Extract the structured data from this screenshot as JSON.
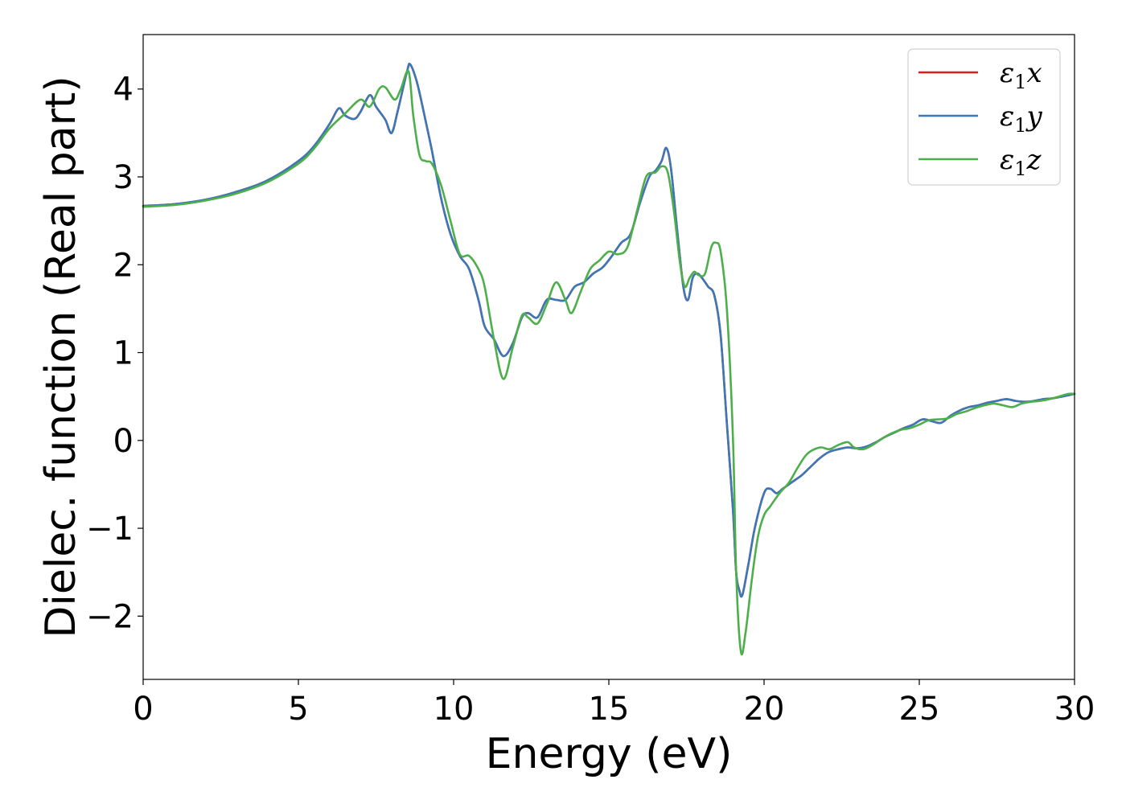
{
  "chart_data": {
    "type": "line",
    "title": "",
    "xlabel": "Energy (eV)",
    "ylabel": "Dielec. function (Real part)",
    "xlim": [
      0,
      30
    ],
    "ylim": [
      -2.72,
      4.62
    ],
    "xticks": [
      0,
      5,
      10,
      15,
      20,
      25,
      30
    ],
    "xtick_labels": [
      "0",
      "5",
      "10",
      "15",
      "20",
      "25",
      "30"
    ],
    "yticks": [
      -2,
      -1,
      0,
      1,
      2,
      3,
      4
    ],
    "ytick_labels": [
      "−2",
      "−1",
      "0",
      "1",
      "2",
      "3",
      "4"
    ],
    "grid": false,
    "legend_position": "top-right",
    "series": [
      {
        "name": "ε₁x",
        "legend": {
          "symbol": "ε",
          "sub": "1",
          "var": "x"
        },
        "color": "#e41a1c",
        "x": [
          0,
          1,
          2,
          3,
          4,
          5,
          5.5,
          6,
          6.3,
          6.5,
          6.8,
          7.0,
          7.3,
          7.5,
          7.8,
          8.0,
          8.2,
          8.5,
          8.6,
          8.8,
          9.0,
          9.3,
          9.6,
          9.9,
          10.2,
          10.5,
          10.8,
          11.0,
          11.3,
          11.6,
          11.9,
          12.2,
          12.4,
          12.7,
          13.0,
          13.3,
          13.6,
          13.9,
          14.2,
          14.5,
          14.8,
          15.1,
          15.4,
          15.7,
          16.0,
          16.3,
          16.5,
          16.7,
          16.85,
          17.0,
          17.2,
          17.4,
          17.55,
          17.7,
          17.85,
          18.0,
          18.2,
          18.4,
          18.6,
          18.8,
          19.0,
          19.1,
          19.2,
          19.3,
          19.5,
          19.7,
          20.0,
          20.2,
          20.4,
          20.6,
          20.8,
          21.0,
          21.2,
          21.5,
          21.8,
          22.1,
          22.4,
          22.7,
          23.0,
          23.3,
          23.6,
          23.9,
          24.2,
          24.5,
          24.8,
          25.1,
          25.4,
          25.7,
          26.0,
          26.3,
          26.6,
          26.9,
          27.2,
          27.5,
          27.8,
          28.1,
          28.4,
          28.7,
          29.0,
          29.3,
          29.6,
          30.0
        ],
        "y": [
          2.67,
          2.69,
          2.74,
          2.83,
          2.96,
          3.18,
          3.35,
          3.6,
          3.78,
          3.7,
          3.66,
          3.74,
          3.93,
          3.8,
          3.65,
          3.5,
          3.75,
          4.2,
          4.28,
          4.1,
          3.8,
          3.3,
          2.75,
          2.35,
          2.1,
          1.95,
          1.6,
          1.3,
          1.15,
          0.96,
          1.1,
          1.4,
          1.45,
          1.4,
          1.6,
          1.6,
          1.6,
          1.75,
          1.8,
          1.9,
          1.97,
          2.1,
          2.25,
          2.35,
          2.7,
          3.0,
          3.07,
          3.18,
          3.33,
          3.1,
          2.4,
          1.75,
          1.6,
          1.85,
          1.9,
          1.85,
          1.75,
          1.65,
          1.2,
          0.2,
          -0.8,
          -1.5,
          -1.7,
          -1.76,
          -1.4,
          -1.0,
          -0.6,
          -0.55,
          -0.6,
          -0.55,
          -0.5,
          -0.45,
          -0.4,
          -0.3,
          -0.2,
          -0.13,
          -0.1,
          -0.08,
          -0.09,
          -0.07,
          -0.02,
          0.04,
          0.09,
          0.14,
          0.18,
          0.24,
          0.22,
          0.2,
          0.28,
          0.34,
          0.38,
          0.4,
          0.43,
          0.45,
          0.47,
          0.45,
          0.44,
          0.45,
          0.47,
          0.48,
          0.5,
          0.53
        ]
      },
      {
        "name": "ε₁y",
        "legend": {
          "symbol": "ε",
          "sub": "1",
          "var": "y"
        },
        "color": "#3b78b8",
        "x": [
          0,
          1,
          2,
          3,
          4,
          5,
          5.5,
          6,
          6.3,
          6.5,
          6.8,
          7.0,
          7.3,
          7.5,
          7.8,
          8.0,
          8.2,
          8.5,
          8.6,
          8.8,
          9.0,
          9.3,
          9.6,
          9.9,
          10.2,
          10.5,
          10.8,
          11.0,
          11.3,
          11.6,
          11.9,
          12.2,
          12.4,
          12.7,
          13.0,
          13.3,
          13.6,
          13.9,
          14.2,
          14.5,
          14.8,
          15.1,
          15.4,
          15.7,
          16.0,
          16.3,
          16.5,
          16.7,
          16.85,
          17.0,
          17.2,
          17.4,
          17.55,
          17.7,
          17.85,
          18.0,
          18.2,
          18.4,
          18.6,
          18.8,
          19.0,
          19.1,
          19.2,
          19.3,
          19.5,
          19.7,
          20.0,
          20.2,
          20.4,
          20.6,
          20.8,
          21.0,
          21.2,
          21.5,
          21.8,
          22.1,
          22.4,
          22.7,
          23.0,
          23.3,
          23.6,
          23.9,
          24.2,
          24.5,
          24.8,
          25.1,
          25.4,
          25.7,
          26.0,
          26.3,
          26.6,
          26.9,
          27.2,
          27.5,
          27.8,
          28.1,
          28.4,
          28.7,
          29.0,
          29.3,
          29.6,
          30.0
        ],
        "y": [
          2.67,
          2.69,
          2.74,
          2.83,
          2.96,
          3.18,
          3.35,
          3.6,
          3.78,
          3.7,
          3.66,
          3.74,
          3.93,
          3.8,
          3.65,
          3.5,
          3.75,
          4.2,
          4.28,
          4.1,
          3.8,
          3.3,
          2.75,
          2.35,
          2.1,
          1.95,
          1.6,
          1.3,
          1.15,
          0.96,
          1.1,
          1.4,
          1.45,
          1.4,
          1.6,
          1.6,
          1.6,
          1.75,
          1.8,
          1.9,
          1.97,
          2.1,
          2.25,
          2.35,
          2.7,
          3.0,
          3.07,
          3.18,
          3.33,
          3.1,
          2.4,
          1.75,
          1.6,
          1.85,
          1.9,
          1.85,
          1.75,
          1.65,
          1.2,
          0.2,
          -0.8,
          -1.5,
          -1.7,
          -1.76,
          -1.4,
          -1.0,
          -0.6,
          -0.55,
          -0.6,
          -0.55,
          -0.5,
          -0.45,
          -0.4,
          -0.3,
          -0.2,
          -0.13,
          -0.1,
          -0.08,
          -0.09,
          -0.07,
          -0.02,
          0.04,
          0.09,
          0.14,
          0.18,
          0.24,
          0.22,
          0.2,
          0.28,
          0.34,
          0.38,
          0.4,
          0.43,
          0.45,
          0.47,
          0.45,
          0.44,
          0.45,
          0.47,
          0.48,
          0.5,
          0.53
        ]
      },
      {
        "name": "ε₁z",
        "legend": {
          "symbol": "ε",
          "sub": "1",
          "var": "z"
        },
        "color": "#4daf4a",
        "x": [
          0,
          1,
          2,
          3,
          4,
          5,
          5.5,
          6,
          6.5,
          7.0,
          7.3,
          7.6,
          7.8,
          8.1,
          8.3,
          8.55,
          8.7,
          8.9,
          9.1,
          9.3,
          9.6,
          9.9,
          10.2,
          10.5,
          10.8,
          11.0,
          11.3,
          11.6,
          11.9,
          12.2,
          12.4,
          12.7,
          13.0,
          13.3,
          13.6,
          13.8,
          14.1,
          14.4,
          14.7,
          15.0,
          15.3,
          15.6,
          15.9,
          16.2,
          16.5,
          16.7,
          16.9,
          17.1,
          17.3,
          17.45,
          17.6,
          17.75,
          17.9,
          18.1,
          18.3,
          18.45,
          18.6,
          18.8,
          19.0,
          19.1,
          19.25,
          19.4,
          19.6,
          19.8,
          20.0,
          20.2,
          20.5,
          20.8,
          21.1,
          21.4,
          21.8,
          22.1,
          22.4,
          22.7,
          22.9,
          23.2,
          23.5,
          23.8,
          24.1,
          24.4,
          24.7,
          25.0,
          25.3,
          25.6,
          25.9,
          26.2,
          26.5,
          26.8,
          27.1,
          27.4,
          27.7,
          28.0,
          28.3,
          28.6,
          28.9,
          29.2,
          29.5,
          29.8,
          30.0
        ],
        "y": [
          2.66,
          2.68,
          2.73,
          2.81,
          2.94,
          3.15,
          3.32,
          3.55,
          3.72,
          3.88,
          3.8,
          4.0,
          4.02,
          3.88,
          4.0,
          4.2,
          3.7,
          3.25,
          3.18,
          3.15,
          2.9,
          2.5,
          2.12,
          2.1,
          1.95,
          1.75,
          1.15,
          0.7,
          1.05,
          1.42,
          1.4,
          1.33,
          1.55,
          1.8,
          1.6,
          1.45,
          1.7,
          1.95,
          2.05,
          2.15,
          2.12,
          2.2,
          2.6,
          3.0,
          3.05,
          3.12,
          3.05,
          2.6,
          2.0,
          1.75,
          1.85,
          1.92,
          1.88,
          1.9,
          2.2,
          2.25,
          2.15,
          1.5,
          0.0,
          -1.5,
          -2.4,
          -2.2,
          -1.6,
          -1.1,
          -0.85,
          -0.75,
          -0.6,
          -0.48,
          -0.3,
          -0.15,
          -0.08,
          -0.1,
          -0.05,
          -0.02,
          -0.08,
          -0.1,
          -0.05,
          0.02,
          0.08,
          0.12,
          0.14,
          0.18,
          0.23,
          0.24,
          0.25,
          0.3,
          0.33,
          0.37,
          0.4,
          0.42,
          0.4,
          0.38,
          0.42,
          0.44,
          0.45,
          0.47,
          0.5,
          0.53,
          0.53
        ]
      }
    ]
  }
}
